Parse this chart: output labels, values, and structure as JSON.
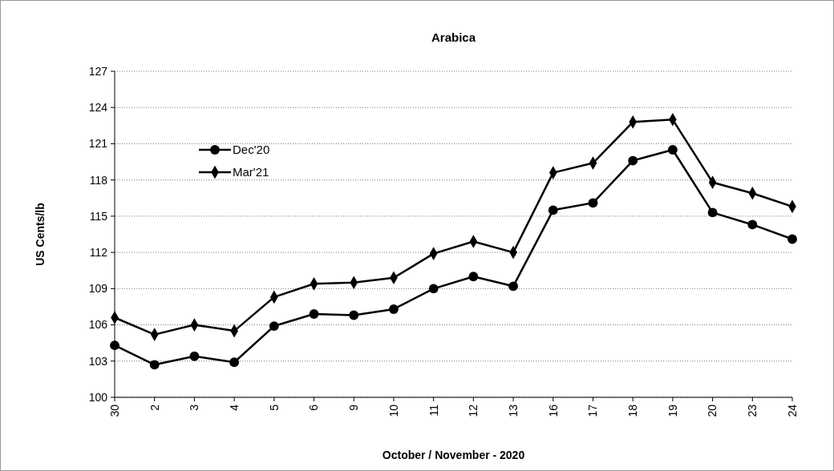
{
  "chart_data": {
    "type": "line",
    "title": "Arabica",
    "xlabel": "October / November - 2020",
    "ylabel": "US Cents/lb",
    "categories": [
      "30",
      "2",
      "3",
      "4",
      "5",
      "6",
      "9",
      "10",
      "11",
      "12",
      "13",
      "16",
      "17",
      "18",
      "19",
      "20",
      "23",
      "24"
    ],
    "series": [
      {
        "name": "Dec'20",
        "color": "#000000",
        "marker": "circle",
        "values": [
          104.3,
          102.7,
          103.4,
          102.9,
          105.9,
          106.9,
          106.8,
          107.3,
          109.0,
          110.0,
          109.2,
          115.5,
          116.1,
          119.6,
          120.5,
          115.3,
          114.3,
          113.1
        ]
      },
      {
        "name": "Mar'21",
        "color": "#000000",
        "marker": "diamond",
        "values": [
          106.6,
          105.2,
          106.0,
          105.5,
          108.3,
          109.4,
          109.5,
          109.9,
          111.9,
          112.9,
          112.0,
          118.6,
          119.4,
          122.8,
          123.0,
          117.8,
          116.9,
          115.8
        ]
      }
    ],
    "ylim": [
      100,
      127
    ],
    "yticks": [
      100,
      103,
      106,
      109,
      112,
      115,
      118,
      121,
      124,
      127
    ],
    "grid": "y",
    "legend": "top left",
    "line_style": "solid"
  }
}
